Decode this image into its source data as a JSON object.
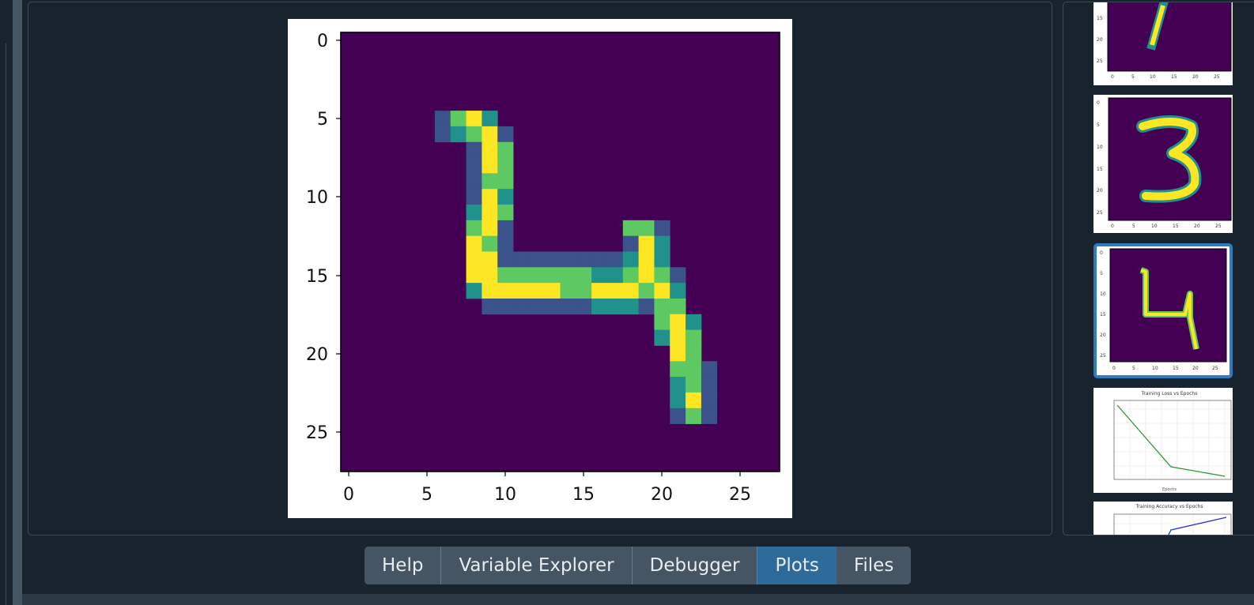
{
  "main_plot": {
    "x_ticks": [
      "0",
      "5",
      "10",
      "15",
      "20",
      "25"
    ],
    "y_ticks": [
      "0",
      "5",
      "10",
      "15",
      "20",
      "25"
    ],
    "colormap": [
      "#440154",
      "#3b528b",
      "#21918c",
      "#5ec962",
      "#fde725"
    ]
  },
  "thumbnails": [
    {
      "kind": "digit-image",
      "digit": "1",
      "selected": false
    },
    {
      "kind": "digit-image",
      "digit": "3",
      "selected": false
    },
    {
      "kind": "digit-image",
      "digit": "4",
      "selected": true
    },
    {
      "kind": "line-chart",
      "title": "Training Loss vs Epochs",
      "selected": false
    },
    {
      "kind": "line-chart",
      "title": "Training Accuracy vs Epochs",
      "selected": false
    }
  ],
  "tabs": {
    "help": "Help",
    "variable_explorer": "Variable Explorer",
    "debugger": "Debugger",
    "plots": "Plots",
    "files": "Files",
    "active": "Plots"
  },
  "colors": {
    "background": "#19232d",
    "tab_background": "#455564",
    "tab_active": "#2e6a9a",
    "selected_border": "#2e7bc0",
    "loss_line": "#2a9a2a",
    "accuracy_line": "#2233dd"
  }
}
